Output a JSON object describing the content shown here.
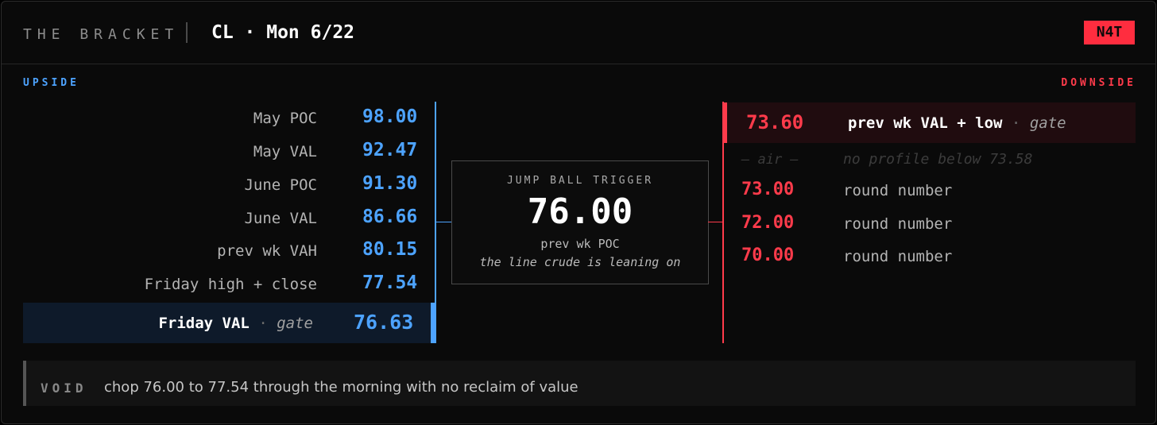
{
  "header": {
    "brand": "THE BRACKET",
    "title": "CL · Mon 6/22",
    "badge": "N4T"
  },
  "upside": {
    "label": "UPSIDE",
    "levels": [
      {
        "label": "May POC",
        "value": "98.00"
      },
      {
        "label": "May VAL",
        "value": "92.47"
      },
      {
        "label": "June POC",
        "value": "91.30"
      },
      {
        "label": "June VAL",
        "value": "86.66"
      },
      {
        "label": "prev wk VAH",
        "value": "80.15"
      },
      {
        "label": "Friday high + close",
        "value": "77.54"
      }
    ],
    "gate": {
      "label": "Friday VAL",
      "separator": "·",
      "tag": "gate",
      "value": "76.63"
    }
  },
  "trigger": {
    "label": "JUMP BALL TRIGGER",
    "price": "76.00",
    "sub": "prev wk POC",
    "note": "the line crude is leaning on"
  },
  "downside": {
    "label": "DOWNSIDE",
    "gate": {
      "value": "73.60",
      "label": "prev wk VAL + low",
      "separator": "·",
      "tag": "gate"
    },
    "air": {
      "value": "— air —",
      "label": "no profile below 73.58"
    },
    "levels": [
      {
        "value": "73.00",
        "label": "round number"
      },
      {
        "value": "72.00",
        "label": "round number"
      },
      {
        "value": "70.00",
        "label": "round number"
      }
    ]
  },
  "void": {
    "label": "VOID",
    "text": "chop 76.00 to 77.54 through the morning with no reclaim of value"
  },
  "colors": {
    "upside": "#4da3ff",
    "downside": "#ff3b4b",
    "badge": "#ff2d3f"
  }
}
